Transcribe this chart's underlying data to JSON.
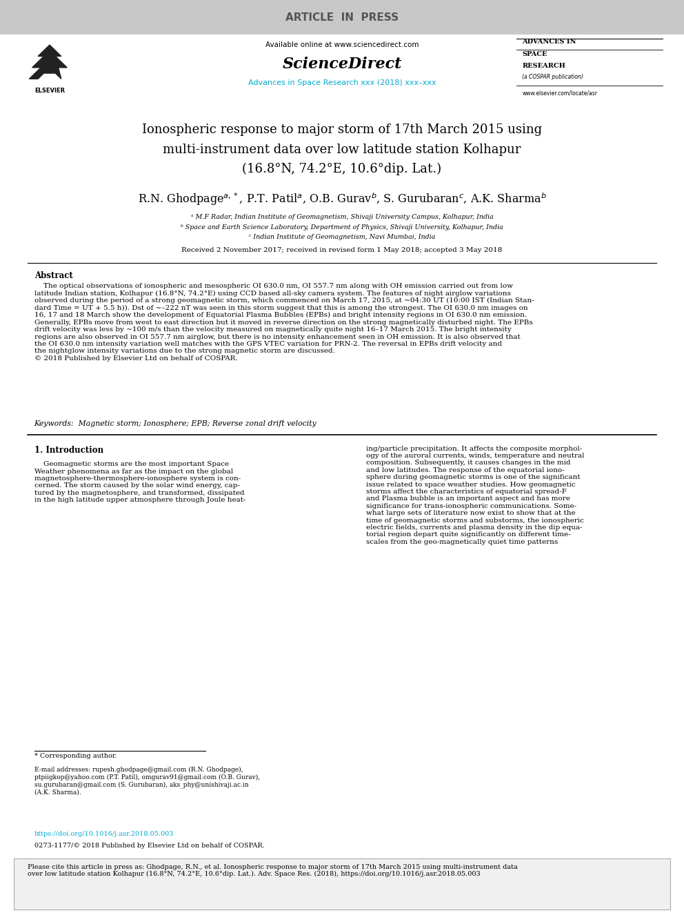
{
  "article_in_press_text": "ARTICLE  IN  PRESS",
  "available_online_text": "Available online at www.sciencedirect.com",
  "sciencedirect_text": "ScienceDirect",
  "journal_text": "Advances in Space Research xxx (2018) xxx–xxx",
  "title_line1": "Ionospheric response to major storm of 17th March 2015 using",
  "title_line2": "multi-instrument data over low latitude station Kolhapur",
  "title_line3": "(16.8°N, 74.2°E, 10.6°dip. Lat.)",
  "affil_a": "ᵃ M.F Radar, Indian Institute of Geomagnetism, Shivaji University Campus, Kolhapur, India",
  "affil_b": "ᵇ Space and Earth Science Laboratory, Department of Physics, Shivaji University, Kolhapur, India",
  "affil_c": "ᶜ Indian Institute of Geomagnetism, Navi Mumbai, India",
  "received_text": "Received 2 November 2017; received in revised form 1 May 2018; accepted 3 May 2018",
  "abstract_title": "Abstract",
  "abstract_body": "    The optical observations of ionospheric and mesospheric OI 630.0 nm, OI 557.7 nm along with OH emission carried out from low\nlatitude Indian station, Kolhapur (16.8°N, 74.2°E) using CCD based all-sky camera system. The features of night airglow variations\nobserved during the period of a strong geomagnetic storm, which commenced on March 17, 2015, at ~04:30 UT (10:00 IST (Indian Stan-\ndard Time = UT + 5.5 h)). Dst of ~–222 nT was seen in this storm suggest that this is among the strongest. The OI 630.0 nm images on\n16, 17 and 18 March show the development of Equatorial Plasma Bubbles (EPBs) and bright intensity regions in OI 630.0 nm emission.\nGenerally, EPBs move from west to east direction but it moved in reverse direction on the strong magnetically disturbed night. The EPBs\ndrift velocity was less by ~100 m/s than the velocity measured on magnetically quite night 16–17 March 2015. The bright intensity\nregions are also observed in OI 557.7 nm airglow, but there is no intensity enhancement seen in OH emission. It is also observed that\nthe OI 630.0 nm intensity variation well matches with the GPS VTEC variation for PRN-2. The reversal in EPBs drift velocity and\nthe nightglow intensity variations due to the strong magnetic storm are discussed.\n© 2018 Published by Elsevier Ltd on behalf of COSPAR.",
  "keywords_text": "Keywords:  Magnetic storm; Ionosphere; EPB; Reverse zonal drift velocity",
  "section1_title": "1. Introduction",
  "section1_col1": "    Geomagnetic storms are the most important Space\nWeather phenomena as far as the impact on the global\nmagnetosphere-thermosphere-ionosphere system is con-\ncerned. The storm caused by the solar wind energy, cap-\ntured by the magnetosphere, and transformed, dissipated\nin the high latitude upper atmosphere through Joule heat-",
  "section1_col2": "ing/particle precipitation. It affects the composite morphol-\nogy of the auroral currents, winds, temperature and neutral\ncomposition. Subsequently, it causes changes in the mid\nand low latitudes. The response of the equatorial iono-\nsphere during geomagnetic storms is one of the significant\nissue related to space weather studies. How geomagnetic\nstorms affect the characteristics of equatorial spread-F\nand Plasma bubble is an important aspect and has more\nsignificance for trans-ionospheric communications. Some-\nwhat large sets of literature now exist to show that at the\ntime of geomagnetic storms and substorms, the ionospheric\nelectric fields, currents and plasma density in the dip equa-\ntorial region depart quite significantly on different time-\nscales from the geo-magnetically quiet time patterns",
  "footnote_corresponding": "* Corresponding author.",
  "footnote_email": "E-mail addresses: rupesh.ghodpage@gmail.com (R.N. Ghodpage),\nptpiigkop@yahoo.com (P.T. Patil), omgurav91@gmail.com (O.B. Gurav),\nsu.gurubaran@gmail.com (S. Gurubaran), aks_phy@unishivaji.ac.in\n(A.K. Sharma).",
  "doi_text": "https://doi.org/10.1016/j.asr.2018.05.003",
  "copyright_text": "0273-1177/© 2018 Published by Elsevier Ltd on behalf of COSPAR.",
  "citation_text": "Please cite this article in press as: Ghodpage, R.N., et al. Ionospheric response to major storm of 17th March 2015 using multi-instrument data\nover low latitude station Kolhapur (16.8°N, 74.2°E, 10.6°dip. Lat.). Adv. Space Res. (2018), https://doi.org/10.1016/j.asr.2018.05.003",
  "cyan_color": "#00aacc",
  "bg_color": "#ffffff",
  "gray_bg": "#c8c8c8",
  "advances_lines": [
    "ADVANCES IN",
    "SPACE",
    "RESEARCH",
    "(a COSPAR publication)",
    "www.elsevier.com/locate/asr"
  ]
}
